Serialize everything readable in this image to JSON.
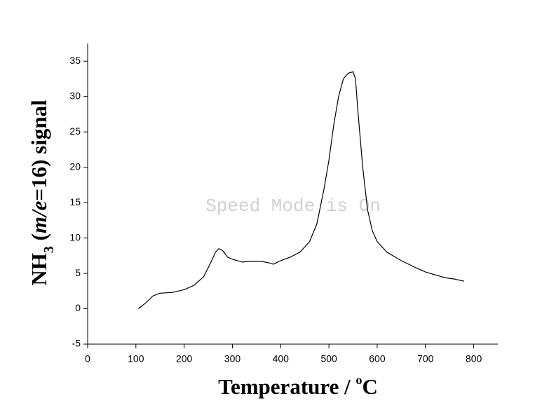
{
  "chart_data": {
    "type": "line",
    "x_label": [
      "Temperature / ",
      "o",
      "C"
    ],
    "y_label": [
      "NH",
      "3",
      " (",
      "m/e",
      "=16) signal"
    ],
    "watermark": "Speed Mode is On",
    "xlim": [
      0,
      850
    ],
    "xticks": [
      0,
      100,
      200,
      300,
      400,
      500,
      600,
      700,
      800
    ],
    "ylim": [
      -5,
      37.5
    ],
    "yticks": [
      -5,
      0,
      5,
      10,
      15,
      20,
      25,
      30,
      35
    ],
    "grid": false,
    "series": [
      {
        "color": "#000000",
        "x": [
          105,
          120,
          135,
          150,
          175,
          200,
          220,
          240,
          255,
          265,
          272,
          280,
          290,
          300,
          320,
          340,
          360,
          375,
          385,
          400,
          420,
          440,
          460,
          475,
          490,
          500,
          510,
          520,
          530,
          540,
          550,
          555,
          560,
          570,
          580,
          590,
          600,
          620,
          650,
          680,
          700,
          720,
          740,
          760,
          780
        ],
        "values": [
          0,
          0.8,
          1.8,
          2.2,
          2.3,
          2.7,
          3.3,
          4.5,
          6.5,
          8.0,
          8.5,
          8.2,
          7.3,
          7.0,
          6.6,
          6.7,
          6.7,
          6.5,
          6.3,
          6.8,
          7.3,
          8.0,
          9.5,
          12,
          17,
          21,
          26,
          30,
          32.5,
          33.3,
          33.5,
          32.5,
          28,
          20,
          14,
          11,
          9.5,
          8.0,
          6.8,
          5.8,
          5.2,
          4.8,
          4.4,
          4.2,
          3.9
        ]
      }
    ]
  }
}
